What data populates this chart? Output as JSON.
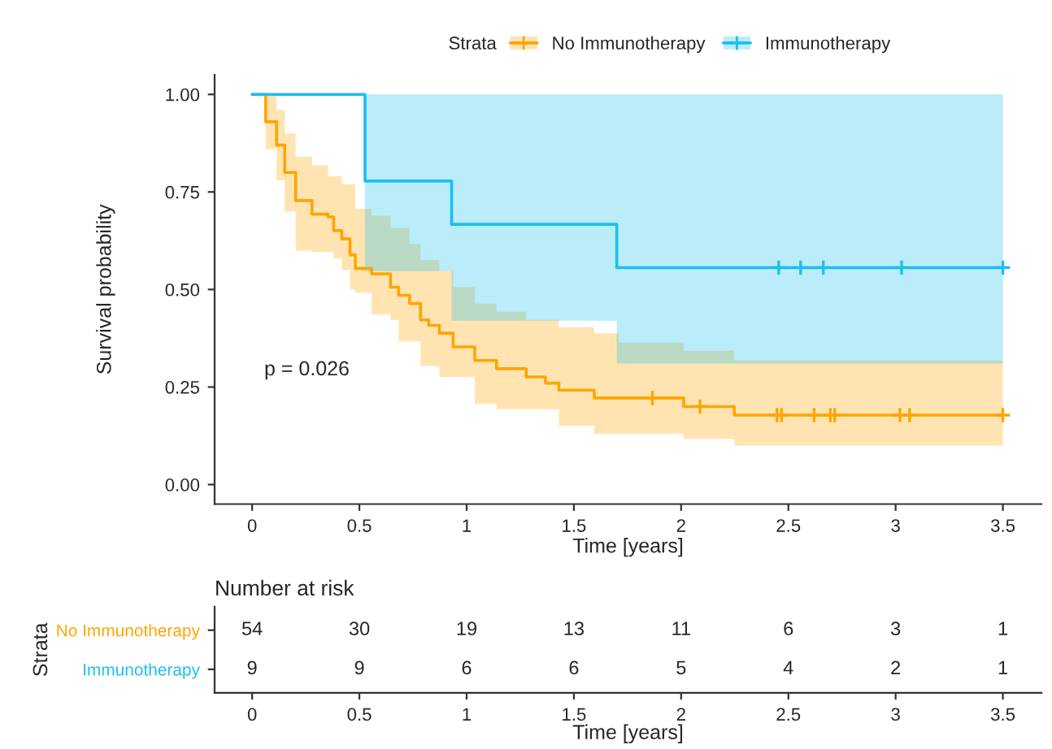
{
  "chart_data": [
    {
      "type": "step",
      "xlabel": "Time [years]",
      "ylabel": "Survival probability",
      "legend_title": "Strata",
      "legend": "top",
      "grid": false,
      "xlim": [
        -0.175,
        3.68
      ],
      "xticks": [
        0,
        {
          "value": 0.5,
          "label": "0.5"
        },
        1,
        {
          "value": 1.5,
          "label": "1.5"
        },
        2,
        {
          "value": 2.5,
          "label": "2.5"
        },
        3,
        {
          "value": 3.5,
          "label": "3.5"
        }
      ],
      "ylim": [
        -0.05,
        1.05
      ],
      "yticks": [
        {
          "value": 0,
          "label": "0.00"
        },
        {
          "value": 0.25,
          "label": "0.25"
        },
        {
          "value": 0.5,
          "label": "0.50"
        },
        {
          "value": 0.75,
          "label": "0.75"
        },
        {
          "value": 1,
          "label": "1.00"
        }
      ],
      "annotations": [
        "p = 0.026"
      ],
      "series": [
        {
          "name": "No Immunotherapy",
          "color": "#FFA500",
          "type": "step",
          "x": [
            0,
            0.063,
            0.114,
            0.152,
            0.203,
            0.279,
            0.354,
            0.38,
            0.418,
            0.456,
            0.481,
            0.557,
            0.645,
            0.683,
            0.734,
            0.785,
            0.823,
            0.873,
            0.937,
            1.038,
            1.139,
            1.278,
            1.367,
            1.43,
            1.595,
            1.709,
            2.012,
            2.248,
            3.5
          ],
          "values": [
            1.0,
            0.93,
            0.87,
            0.8,
            0.728,
            0.693,
            0.686,
            0.651,
            0.63,
            0.589,
            0.554,
            0.54,
            0.506,
            0.485,
            0.464,
            0.422,
            0.408,
            0.388,
            0.353,
            0.318,
            0.297,
            0.276,
            0.26,
            0.242,
            0.222,
            0.222,
            0.2,
            0.178,
            0.178
          ],
          "lower": [
            1.0,
            0.86,
            0.78,
            0.7,
            0.6,
            0.596,
            0.596,
            0.58,
            0.55,
            0.5,
            0.492,
            0.436,
            0.422,
            0.367,
            0.367,
            0.304,
            0.304,
            0.276,
            0.276,
            0.207,
            0.193,
            0.193,
            0.193,
            0.151,
            0.13,
            0.13,
            0.117,
            0.1,
            0.1
          ],
          "upper": [
            1.0,
            1.0,
            0.96,
            0.9,
            0.84,
            0.818,
            0.79,
            0.79,
            0.77,
            0.77,
            0.707,
            0.689,
            0.658,
            0.658,
            0.617,
            0.575,
            0.575,
            0.547,
            0.506,
            0.464,
            0.443,
            0.422,
            0.422,
            0.403,
            0.388,
            0.364,
            0.343,
            0.318,
            0.318
          ]
        },
        {
          "name": "Immunotherapy",
          "color": "#1CBFEF",
          "type": "step",
          "x": [
            0,
            0.526,
            0.93,
            1.7,
            3.5
          ],
          "values": [
            1.0,
            0.778,
            0.667,
            0.556,
            0.556
          ],
          "lower": [
            1.0,
            0.547,
            0.42,
            0.31,
            0.31
          ],
          "upper": [
            1.0,
            1.0,
            1.0,
            1.0,
            1.0
          ]
        },
        {
          "type": "scatter",
          "marker": "cross",
          "color": "#FFA500",
          "x": [
            1.866,
            2.088,
            2.447,
            2.468,
            2.62,
            2.696,
            2.716,
            3.02,
            3.065,
            3.5
          ],
          "values": [
            0.222,
            0.2,
            0.178,
            0.178,
            0.178,
            0.178,
            0.178,
            0.178,
            0.178,
            0.178
          ]
        },
        {
          "type": "scatter",
          "marker": "cross",
          "color": "#1CBFEF",
          "x": [
            2.455,
            2.557,
            2.663,
            3.028,
            3.5
          ],
          "values": [
            0.556,
            0.556,
            0.556,
            0.556,
            0.556
          ]
        }
      ]
    },
    {
      "type": "heatmap",
      "title": "Number at risk",
      "xlabel": "Time [years]",
      "ylabel": "Strata",
      "data_labels": true,
      "categories": [
        "0",
        "0.5",
        "1",
        "1.5",
        "2",
        "2.5",
        "3",
        "3.5"
      ],
      "y_categories": [
        "No Immunotherapy",
        "Immunotherapy"
      ],
      "colors": [
        "#FFA500",
        "#1CBFEF"
      ],
      "cells": [
        [
          54,
          30,
          19,
          13,
          11,
          6,
          3,
          1
        ],
        [
          9,
          9,
          6,
          6,
          5,
          4,
          2,
          1
        ]
      ]
    }
  ]
}
